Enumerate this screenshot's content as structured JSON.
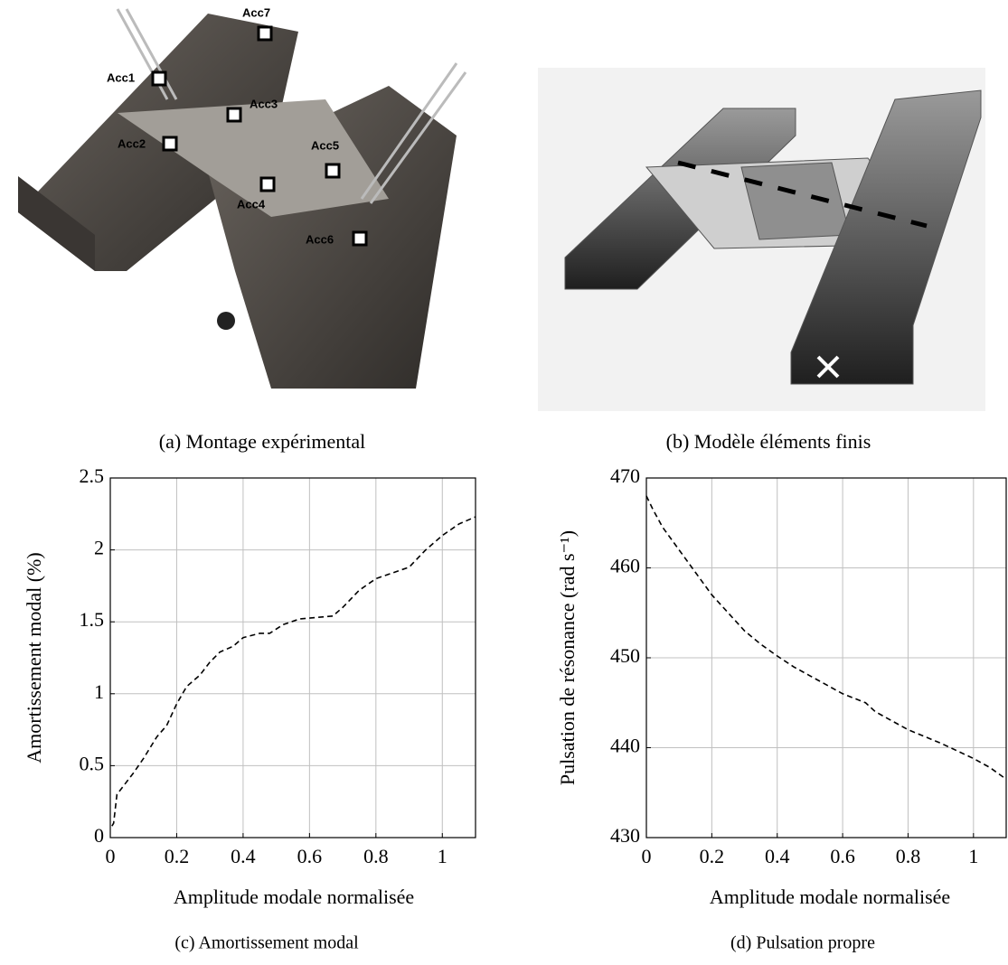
{
  "figures": [
    {
      "caption": "(a) Montage expérimental",
      "labels": [
        "Acc7",
        "Acc1",
        "Acc3",
        "Acc2",
        "Acc5",
        "Acc4",
        "Acc6"
      ]
    },
    {
      "caption": "(b) Modèle éléments finis"
    }
  ],
  "chart_data": [
    {
      "type": "line",
      "caption": "(c) Amortissement modal",
      "x_label": "Amplitude modale normalisée",
      "y_label": "Amortissement modal (%)",
      "xlim": [
        0,
        1.1
      ],
      "xticks": [
        0,
        0.2,
        0.4,
        0.6,
        0.8,
        1
      ],
      "ylim": [
        0,
        2.5
      ],
      "yticks": [
        0,
        0.5,
        1,
        1.5,
        2,
        2.5
      ],
      "grid": true,
      "color": "#000000",
      "line_style": "dashed",
      "x": [
        0.005,
        0.01,
        0.02,
        0.04,
        0.07,
        0.1,
        0.14,
        0.17,
        0.2,
        0.23,
        0.27,
        0.3,
        0.33,
        0.37,
        0.4,
        0.45,
        0.48,
        0.52,
        0.57,
        0.62,
        0.67,
        0.7,
        0.75,
        0.8,
        0.85,
        0.9,
        0.95,
        1.0,
        1.05,
        1.1
      ],
      "values": [
        0.08,
        0.1,
        0.3,
        0.36,
        0.45,
        0.55,
        0.7,
        0.78,
        0.93,
        1.05,
        1.13,
        1.22,
        1.29,
        1.33,
        1.39,
        1.42,
        1.42,
        1.48,
        1.52,
        1.53,
        1.54,
        1.6,
        1.72,
        1.8,
        1.84,
        1.88,
        2.0,
        2.1,
        2.18,
        2.23
      ]
    },
    {
      "type": "line",
      "caption": "(d) Pulsation propre",
      "x_label": "Amplitude modale normalisée",
      "y_label": "Pulsation de résonance (rad s⁻¹)",
      "xlim": [
        0,
        1.1
      ],
      "xticks": [
        0,
        0.2,
        0.4,
        0.6,
        0.8,
        1
      ],
      "ylim": [
        430,
        470
      ],
      "yticks": [
        430,
        440,
        450,
        460,
        470
      ],
      "grid": true,
      "color": "#000000",
      "line_style": "dashed",
      "x": [
        0,
        0.02,
        0.05,
        0.1,
        0.15,
        0.2,
        0.25,
        0.3,
        0.35,
        0.4,
        0.45,
        0.5,
        0.55,
        0.6,
        0.67,
        0.7,
        0.8,
        0.9,
        1.0,
        1.05,
        1.1
      ],
      "values": [
        468,
        466.5,
        464.5,
        462,
        459.5,
        457,
        455,
        453,
        451.5,
        450.2,
        449,
        448,
        447,
        446,
        445,
        444,
        442,
        440.5,
        438.8,
        437.8,
        436.5
      ]
    }
  ]
}
